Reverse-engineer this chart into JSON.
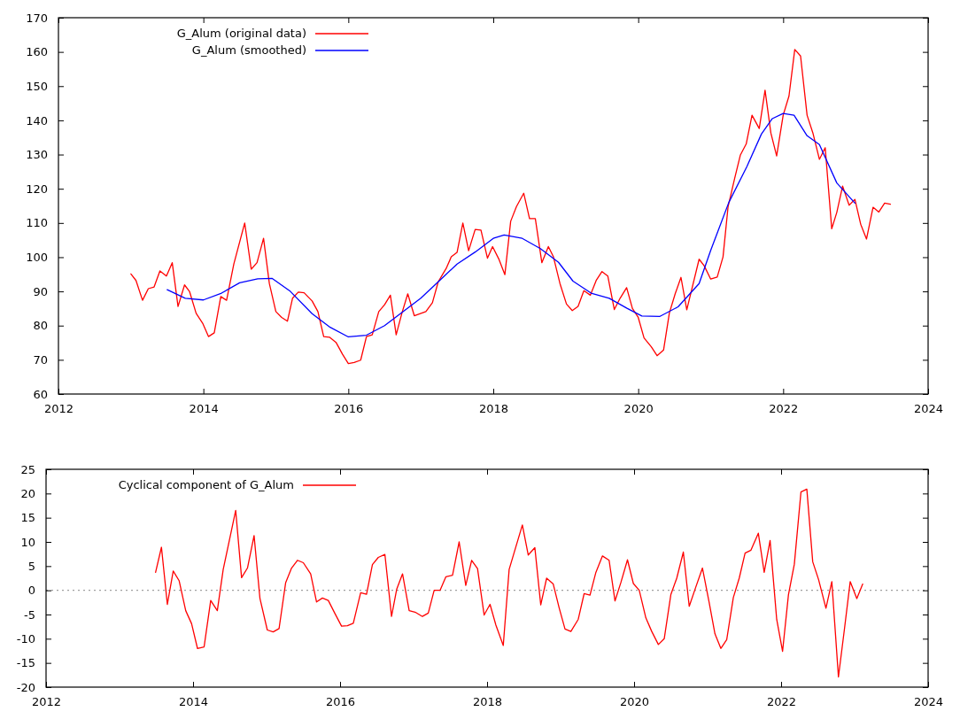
{
  "chart_data": [
    {
      "type": "line",
      "xlim": [
        2012,
        2024
      ],
      "xticks": [
        2012,
        2014,
        2016,
        2018,
        2020,
        2022,
        2024
      ],
      "ylim": [
        60,
        170
      ],
      "yticks": [
        60,
        70,
        80,
        90,
        100,
        110,
        120,
        130,
        140,
        150,
        160,
        170
      ],
      "legend": "top left",
      "grid": false,
      "series": [
        {
          "name": "G_Alum (original data)",
          "color": "#ff0000",
          "x": [
            2013.0,
            2013.07,
            2013.16,
            2013.24,
            2013.32,
            2013.4,
            2013.49,
            2013.57,
            2013.65,
            2013.74,
            2013.81,
            2013.9,
            2013.99,
            2014.07,
            2014.15,
            2014.24,
            2014.32,
            2014.42,
            2014.57,
            2014.66,
            2014.74,
            2014.83,
            2014.91,
            2015.0,
            2015.08,
            2015.16,
            2015.23,
            2015.31,
            2015.39,
            2015.5,
            2015.58,
            2015.66,
            2015.74,
            2015.83,
            2015.92,
            2016.0,
            2016.08,
            2016.17,
            2016.25,
            2016.33,
            2016.42,
            2016.5,
            2016.58,
            2016.66,
            2016.74,
            2016.82,
            2016.91,
            2017.07,
            2017.16,
            2017.24,
            2017.35,
            2017.42,
            2017.5,
            2017.58,
            2017.66,
            2017.75,
            2017.83,
            2017.92,
            2017.99,
            2018.08,
            2018.16,
            2018.24,
            2018.32,
            2018.42,
            2018.5,
            2018.58,
            2018.67,
            2018.76,
            2018.83,
            2018.92,
            2019.01,
            2019.09,
            2019.17,
            2019.25,
            2019.34,
            2019.42,
            2019.5,
            2019.58,
            2019.67,
            2019.75,
            2019.84,
            2019.92,
            2020.0,
            2020.08,
            2020.18,
            2020.26,
            2020.35,
            2020.43,
            2020.51,
            2020.59,
            2020.67,
            2020.84,
            2020.91,
            2021.0,
            2021.09,
            2021.17,
            2021.24,
            2021.33,
            2021.41,
            2021.49,
            2021.57,
            2021.67,
            2021.75,
            2021.83,
            2021.91,
            2022.0,
            2022.08,
            2022.16,
            2022.24,
            2022.33,
            2022.41,
            2022.5,
            2022.58,
            2022.67,
            2022.74,
            2022.82,
            2022.91,
            2022.99,
            2023.07,
            2023.15,
            2023.24,
            2023.32,
            2023.4,
            2023.48
          ],
          "values": [
            95.1,
            93.2,
            87.4,
            90.8,
            91.3,
            96.0,
            94.5,
            98.4,
            85.6,
            91.9,
            89.9,
            83.6,
            80.7,
            76.8,
            77.9,
            88.5,
            87.4,
            98.0,
            110.0,
            96.5,
            98.4,
            105.5,
            92.3,
            84.1,
            82.4,
            81.3,
            88.0,
            89.8,
            89.6,
            87.2,
            84.1,
            76.8,
            76.6,
            75.1,
            71.6,
            68.9,
            69.2,
            69.9,
            76.8,
            77.3,
            84.1,
            86.1,
            88.9,
            77.3,
            83.7,
            89.3,
            82.9,
            84.1,
            86.7,
            92.8,
            96.7,
            100.1,
            101.4,
            110.0,
            101.9,
            108.1,
            107.9,
            99.7,
            103.1,
            99.3,
            94.9,
            110.5,
            114.8,
            118.7,
            111.3,
            111.3,
            98.4,
            103.1,
            100.1,
            92.3,
            86.3,
            84.4,
            85.6,
            90.2,
            88.9,
            93.2,
            95.8,
            94.5,
            84.7,
            88.0,
            91.1,
            85.0,
            82.4,
            76.4,
            73.8,
            71.2,
            72.9,
            83.7,
            89.3,
            94.1,
            84.6,
            99.4,
            97.5,
            93.6,
            94.2,
            100.1,
            114.8,
            123.0,
            129.9,
            133.1,
            141.5,
            137.6,
            148.8,
            136.3,
            129.6,
            141.5,
            147.1,
            160.7,
            158.8,
            141.5,
            136.3,
            128.6,
            132.0,
            108.3,
            113.1,
            120.8,
            115.2,
            116.9,
            109.6,
            105.3,
            114.6,
            113.2,
            115.8,
            115.5
          ]
        },
        {
          "name": "G_Alum (smoothed)",
          "color": "#0000ff",
          "x": [
            2013.5,
            2013.75,
            2014.0,
            2014.25,
            2014.5,
            2014.75,
            2014.95,
            2015.2,
            2015.5,
            2015.75,
            2016.0,
            2016.25,
            2016.5,
            2016.75,
            2017.0,
            2017.25,
            2017.5,
            2017.75,
            2018.0,
            2018.15,
            2018.4,
            2018.65,
            2018.9,
            2019.1,
            2019.35,
            2019.6,
            2019.85,
            2020.05,
            2020.3,
            2020.55,
            2020.84,
            2021.0,
            2021.25,
            2021.5,
            2021.7,
            2021.85,
            2022.0,
            2022.15,
            2022.33,
            2022.5,
            2022.74,
            2022.99
          ],
          "values": [
            90.5,
            88,
            87.5,
            89.5,
            92.5,
            93.7,
            93.8,
            90,
            83.5,
            79.5,
            76.7,
            77.2,
            80,
            84,
            88,
            93,
            98,
            101.5,
            105.5,
            106.5,
            105.5,
            102.5,
            98.5,
            93,
            89.5,
            88,
            85,
            82.8,
            82.7,
            85.5,
            92.3,
            102,
            116,
            126.5,
            136,
            140.5,
            142,
            141.5,
            135.5,
            132.9,
            121.7,
            115.8
          ]
        }
      ]
    },
    {
      "type": "line",
      "xlim": [
        2012,
        2024
      ],
      "xticks": [
        2012,
        2014,
        2016,
        2018,
        2020,
        2022,
        2024
      ],
      "ylim": [
        -20,
        25
      ],
      "yticks": [
        -20,
        -15,
        -10,
        -5,
        0,
        5,
        10,
        15,
        20,
        25
      ],
      "legend": "top left",
      "grid": false,
      "ref_lines": [
        {
          "axis": "y",
          "value": 0,
          "color": "#a0a0a0",
          "line_style": "dotted"
        }
      ],
      "series": [
        {
          "name": "Cyclical component of G_Alum",
          "color": "#ff0000",
          "x": [
            2013.49,
            2013.57,
            2013.65,
            2013.73,
            2013.81,
            2013.9,
            2013.98,
            2014.06,
            2014.15,
            2014.24,
            2014.33,
            2014.41,
            2014.58,
            2014.66,
            2014.74,
            2014.83,
            2014.91,
            2015.01,
            2015.09,
            2015.17,
            2015.26,
            2015.34,
            2015.42,
            2015.5,
            2015.6,
            2015.68,
            2015.76,
            2015.84,
            2015.93,
            2016.02,
            2016.1,
            2016.18,
            2016.28,
            2016.36,
            2016.44,
            2016.52,
            2016.61,
            2016.7,
            2016.77,
            2016.85,
            2016.94,
            2017.02,
            2017.12,
            2017.2,
            2017.28,
            2017.36,
            2017.44,
            2017.53,
            2017.62,
            2017.71,
            2017.79,
            2017.87,
            2017.96,
            2018.04,
            2018.12,
            2018.22,
            2018.3,
            2018.48,
            2018.56,
            2018.65,
            2018.73,
            2018.81,
            2018.9,
            2018.98,
            2019.06,
            2019.14,
            2019.24,
            2019.32,
            2019.4,
            2019.48,
            2019.57,
            2019.66,
            2019.74,
            2019.82,
            2019.91,
            2019.99,
            2020.07,
            2020.16,
            2020.24,
            2020.33,
            2020.41,
            2020.5,
            2020.58,
            2020.67,
            2020.75,
            2020.84,
            2020.93,
            2021.02,
            2021.1,
            2021.18,
            2021.26,
            2021.35,
            2021.43,
            2021.51,
            2021.59,
            2021.69,
            2021.77,
            2021.85,
            2021.94,
            2022.02,
            2022.1,
            2022.18,
            2022.27,
            2022.35,
            2022.43,
            2022.51,
            2022.61,
            2022.69,
            2022.78,
            2022.86,
            2022.94,
            2023.03,
            2023.11
          ],
          "values": [
            3.7,
            8.9,
            -2.9,
            4.0,
            2.0,
            -4.2,
            -6.9,
            -12.0,
            -11.7,
            -2.1,
            -4.2,
            4.3,
            16.5,
            2.6,
            4.6,
            11.3,
            -1.7,
            -8.2,
            -8.6,
            -7.9,
            1.6,
            4.6,
            6.2,
            5.7,
            3.4,
            -2.4,
            -1.6,
            -2.1,
            -4.8,
            -7.4,
            -7.3,
            -6.8,
            -0.5,
            -0.8,
            5.3,
            6.8,
            7.4,
            -5.4,
            0.2,
            3.4,
            -4.2,
            -4.5,
            -5.4,
            -4.7,
            0,
            0,
            2.8,
            3.1,
            10.0,
            1.0,
            6.2,
            4.5,
            -5.1,
            -2.9,
            -7.2,
            -11.4,
            4.3,
            13.5,
            7.3,
            8.8,
            -3.0,
            2.5,
            1.3,
            -3.6,
            -8.0,
            -8.5,
            -6.0,
            -0.7,
            -1.0,
            3.7,
            7.1,
            6.2,
            -2.2,
            1.6,
            6.3,
            1.4,
            0,
            -5.7,
            -8.5,
            -11.2,
            -10.0,
            -0.9,
            2.5,
            7.9,
            -3.3,
            0.7,
            4.6,
            -2.4,
            -9.0,
            -12.0,
            -10.2,
            -1.5,
            2.5,
            7.7,
            8.3,
            11.8,
            3.7,
            10.3,
            -6.0,
            -12.6,
            -0.9,
            5.4,
            20.3,
            20.9,
            5.9,
            2.2,
            -3.7,
            1.8,
            -17.9,
            -8.2,
            1.8,
            -1.7,
            1.3
          ]
        }
      ]
    }
  ]
}
